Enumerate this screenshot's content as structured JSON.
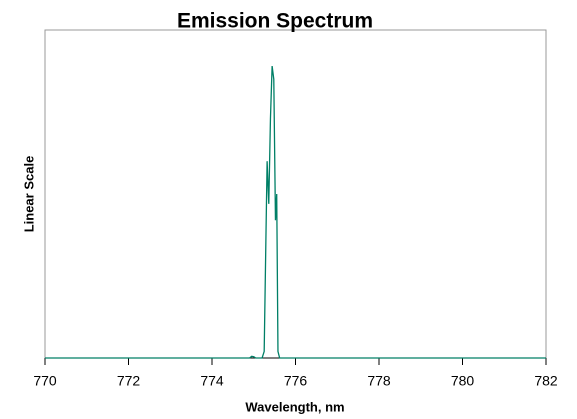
{
  "chart_data": {
    "type": "line",
    "title": "Emission Spectrum",
    "x_label": "Wavelength, nm",
    "y_label": "Linear Scale",
    "x": [
      770,
      774.9,
      774.95,
      775.0,
      775.05,
      775.2,
      775.25,
      775.28,
      775.32,
      775.36,
      775.4,
      775.44,
      775.48,
      775.52,
      775.55,
      775.58,
      775.62,
      782
    ],
    "series": [
      {
        "name": "Emission",
        "color": "#007f66",
        "values": [
          0,
          0,
          0.005,
          0.004,
          0,
          0,
          0.02,
          0.27,
          0.6,
          0.47,
          0.73,
          0.89,
          0.85,
          0.42,
          0.5,
          0.02,
          0,
          0
        ]
      }
    ],
    "xlim": [
      770,
      782
    ],
    "xticks": [
      770,
      772,
      774,
      776,
      778,
      780,
      782
    ],
    "ylim": [
      0,
      1
    ]
  }
}
